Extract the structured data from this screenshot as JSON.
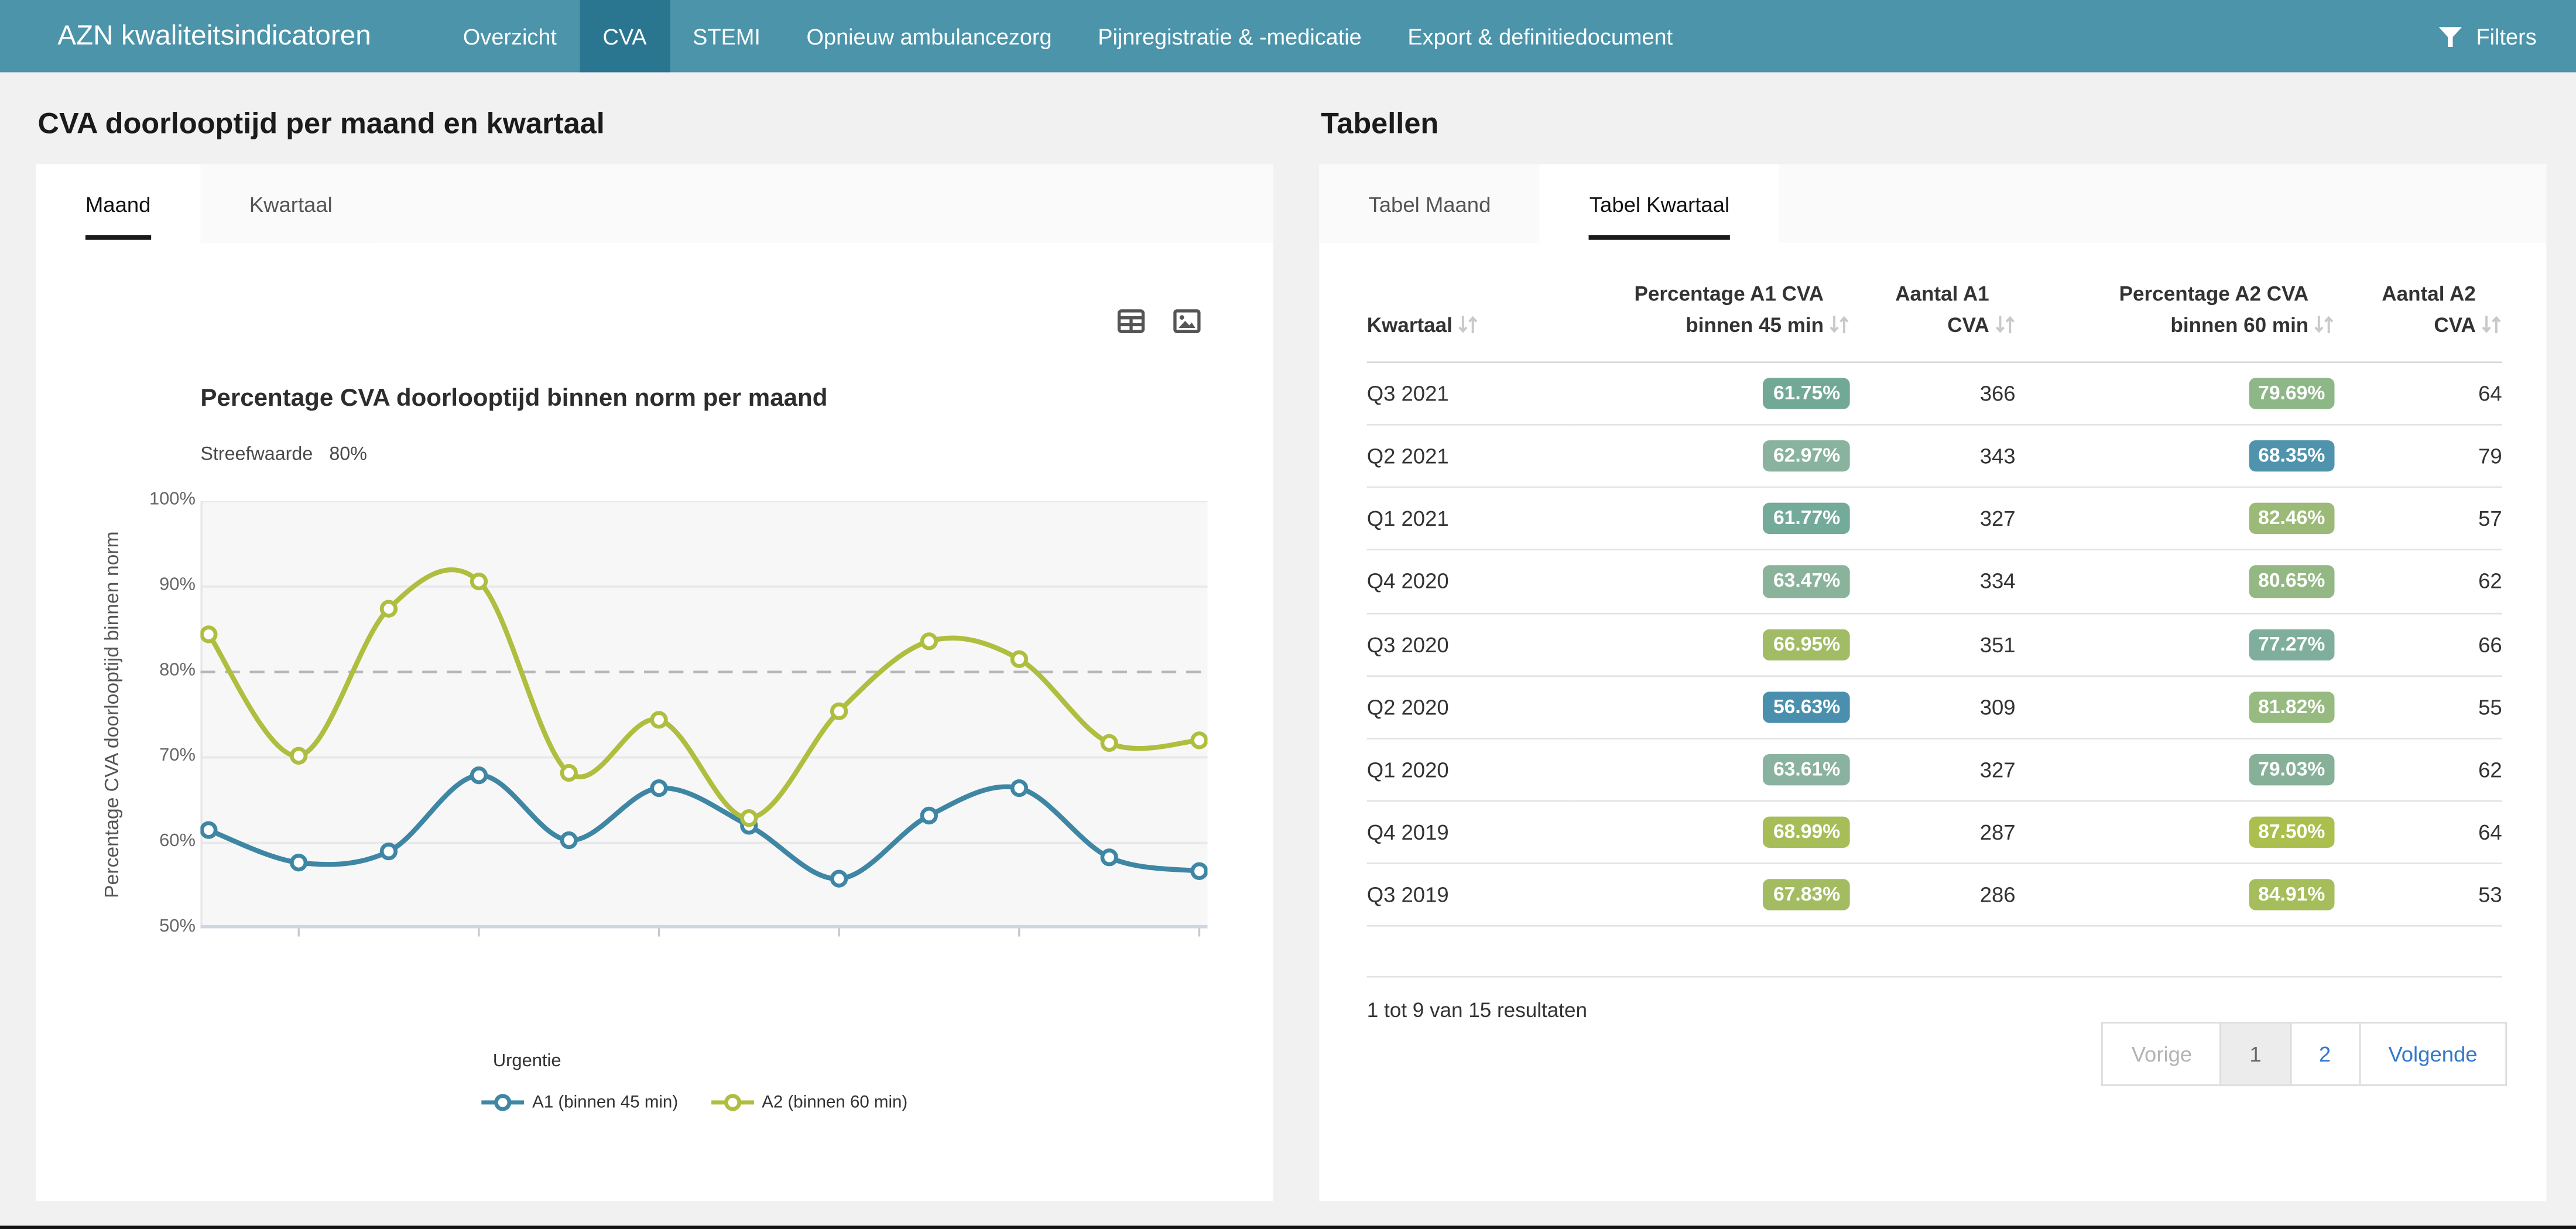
{
  "colors": {
    "navbar": "#4b94aa",
    "navbar_active": "#2a7590",
    "link_blue": "#3478c8"
  },
  "navbar": {
    "brand": "AZN kwaliteitsindicatoren",
    "items": [
      {
        "label": "Overzicht",
        "active": false
      },
      {
        "label": "CVA",
        "active": true
      },
      {
        "label": "STEMI",
        "active": false
      },
      {
        "label": "Opnieuw ambulancezorg",
        "active": false
      },
      {
        "label": "Pijnregistratie & -medicatie",
        "active": false
      },
      {
        "label": "Export & definitiedocument",
        "active": false
      }
    ],
    "filters_label": "Filters"
  },
  "left_panel": {
    "title": "CVA doorlooptijd per maand en kwartaal",
    "tabs": [
      {
        "label": "Maand",
        "active": true
      },
      {
        "label": "Kwartaal",
        "active": false
      }
    ],
    "toolbar_icons": [
      "table-view-icon",
      "image-export-icon"
    ]
  },
  "chart_data": {
    "type": "line",
    "title": "Percentage CVA doorlooptijd binnen norm per maand",
    "target_label": "Streefwaarde",
    "target_value_label": "80%",
    "target_value": 80,
    "ylabel": "Percentage CVA doorlooptijd binnen norm",
    "ylim": [
      50,
      100
    ],
    "yticks": [
      "100%",
      "90%",
      "80%",
      "70%",
      "60%",
      "50%"
    ],
    "x_axis_labels": [],
    "x_points": 12,
    "grid": "horizontal",
    "legend_title": "Urgentie",
    "legend_position": "bottom",
    "series": [
      {
        "name": "A1 (binnen 45 min)",
        "color": "#3e86a4",
        "values": [
          61.5,
          57.7,
          59.0,
          67.9,
          60.3,
          66.4,
          62.0,
          55.8,
          63.2,
          66.4,
          58.3,
          56.7
        ]
      },
      {
        "name": "A2 (binnen 60 min)",
        "color": "#afbe3f",
        "values": [
          84.4,
          70.2,
          87.4,
          90.6,
          68.2,
          74.4,
          62.9,
          75.4,
          83.6,
          81.5,
          71.7,
          72.0
        ]
      }
    ]
  },
  "right_panel": {
    "title": "Tabellen",
    "tabs": [
      {
        "label": "Tabel Maand",
        "active": false
      },
      {
        "label": "Tabel Kwartaal",
        "active": true
      }
    ],
    "table": {
      "columns": [
        {
          "lines": [
            "Kwartaal"
          ],
          "sortable": true
        },
        {
          "lines": [
            "Percentage A1 CVA",
            "binnen 45 min"
          ],
          "sortable": true
        },
        {
          "lines": [
            "Aantal A1",
            "CVA"
          ],
          "sortable": true
        },
        {
          "lines": [
            "Percentage A2 CVA",
            "binnen 60 min"
          ],
          "sortable": true
        },
        {
          "lines": [
            "Aantal A2",
            "CVA"
          ],
          "sortable": true
        }
      ],
      "rows": [
        {
          "kwartaal": "Q3 2021",
          "pct_a1": "61.75%",
          "pct_a1_color": "#72a996",
          "aantal_a1": "366",
          "pct_a2": "79.69%",
          "pct_a2_color": "#8eb787",
          "aantal_a2": "64"
        },
        {
          "kwartaal": "Q2 2021",
          "pct_a1": "62.97%",
          "pct_a1_color": "#89b29f",
          "aantal_a1": "343",
          "pct_a2": "68.35%",
          "pct_a2_color": "#4f93ad",
          "aantal_a2": "79"
        },
        {
          "kwartaal": "Q1 2021",
          "pct_a1": "61.77%",
          "pct_a1_color": "#74aa9a",
          "aantal_a1": "327",
          "pct_a2": "82.46%",
          "pct_a2_color": "#9cba77",
          "aantal_a2": "57"
        },
        {
          "kwartaal": "Q4 2020",
          "pct_a1": "63.47%",
          "pct_a1_color": "#8bb39c",
          "aantal_a1": "334",
          "pct_a2": "80.65%",
          "pct_a2_color": "#93b883",
          "aantal_a2": "62"
        },
        {
          "kwartaal": "Q3 2020",
          "pct_a1": "66.95%",
          "pct_a1_color": "#a2bc66",
          "aantal_a1": "351",
          "pct_a2": "77.27%",
          "pct_a2_color": "#7fae9d",
          "aantal_a2": "66"
        },
        {
          "kwartaal": "Q2 2020",
          "pct_a1": "56.63%",
          "pct_a1_color": "#4a90ae",
          "aantal_a1": "309",
          "pct_a2": "81.82%",
          "pct_a2_color": "#97ba80",
          "aantal_a2": "55"
        },
        {
          "kwartaal": "Q1 2020",
          "pct_a1": "63.61%",
          "pct_a1_color": "#8ab2a0",
          "aantal_a1": "327",
          "pct_a2": "79.03%",
          "pct_a2_color": "#86b098",
          "aantal_a2": "62"
        },
        {
          "kwartaal": "Q4 2019",
          "pct_a1": "68.99%",
          "pct_a1_color": "#a6bd58",
          "aantal_a1": "287",
          "pct_a2": "87.50%",
          "pct_a2_color": "#abbf4f",
          "aantal_a2": "64"
        },
        {
          "kwartaal": "Q3 2019",
          "pct_a1": "67.83%",
          "pct_a1_color": "#a3bc61",
          "aantal_a1": "286",
          "pct_a2": "84.91%",
          "pct_a2_color": "#a5bd5b",
          "aantal_a2": "53"
        }
      ],
      "results_text": "1 tot 9 van 15 resultaten",
      "pagination": {
        "prev_label": "Vorige",
        "pages": [
          {
            "label": "1",
            "current": true
          },
          {
            "label": "2",
            "current": false
          }
        ],
        "next_label": "Volgende"
      }
    }
  }
}
